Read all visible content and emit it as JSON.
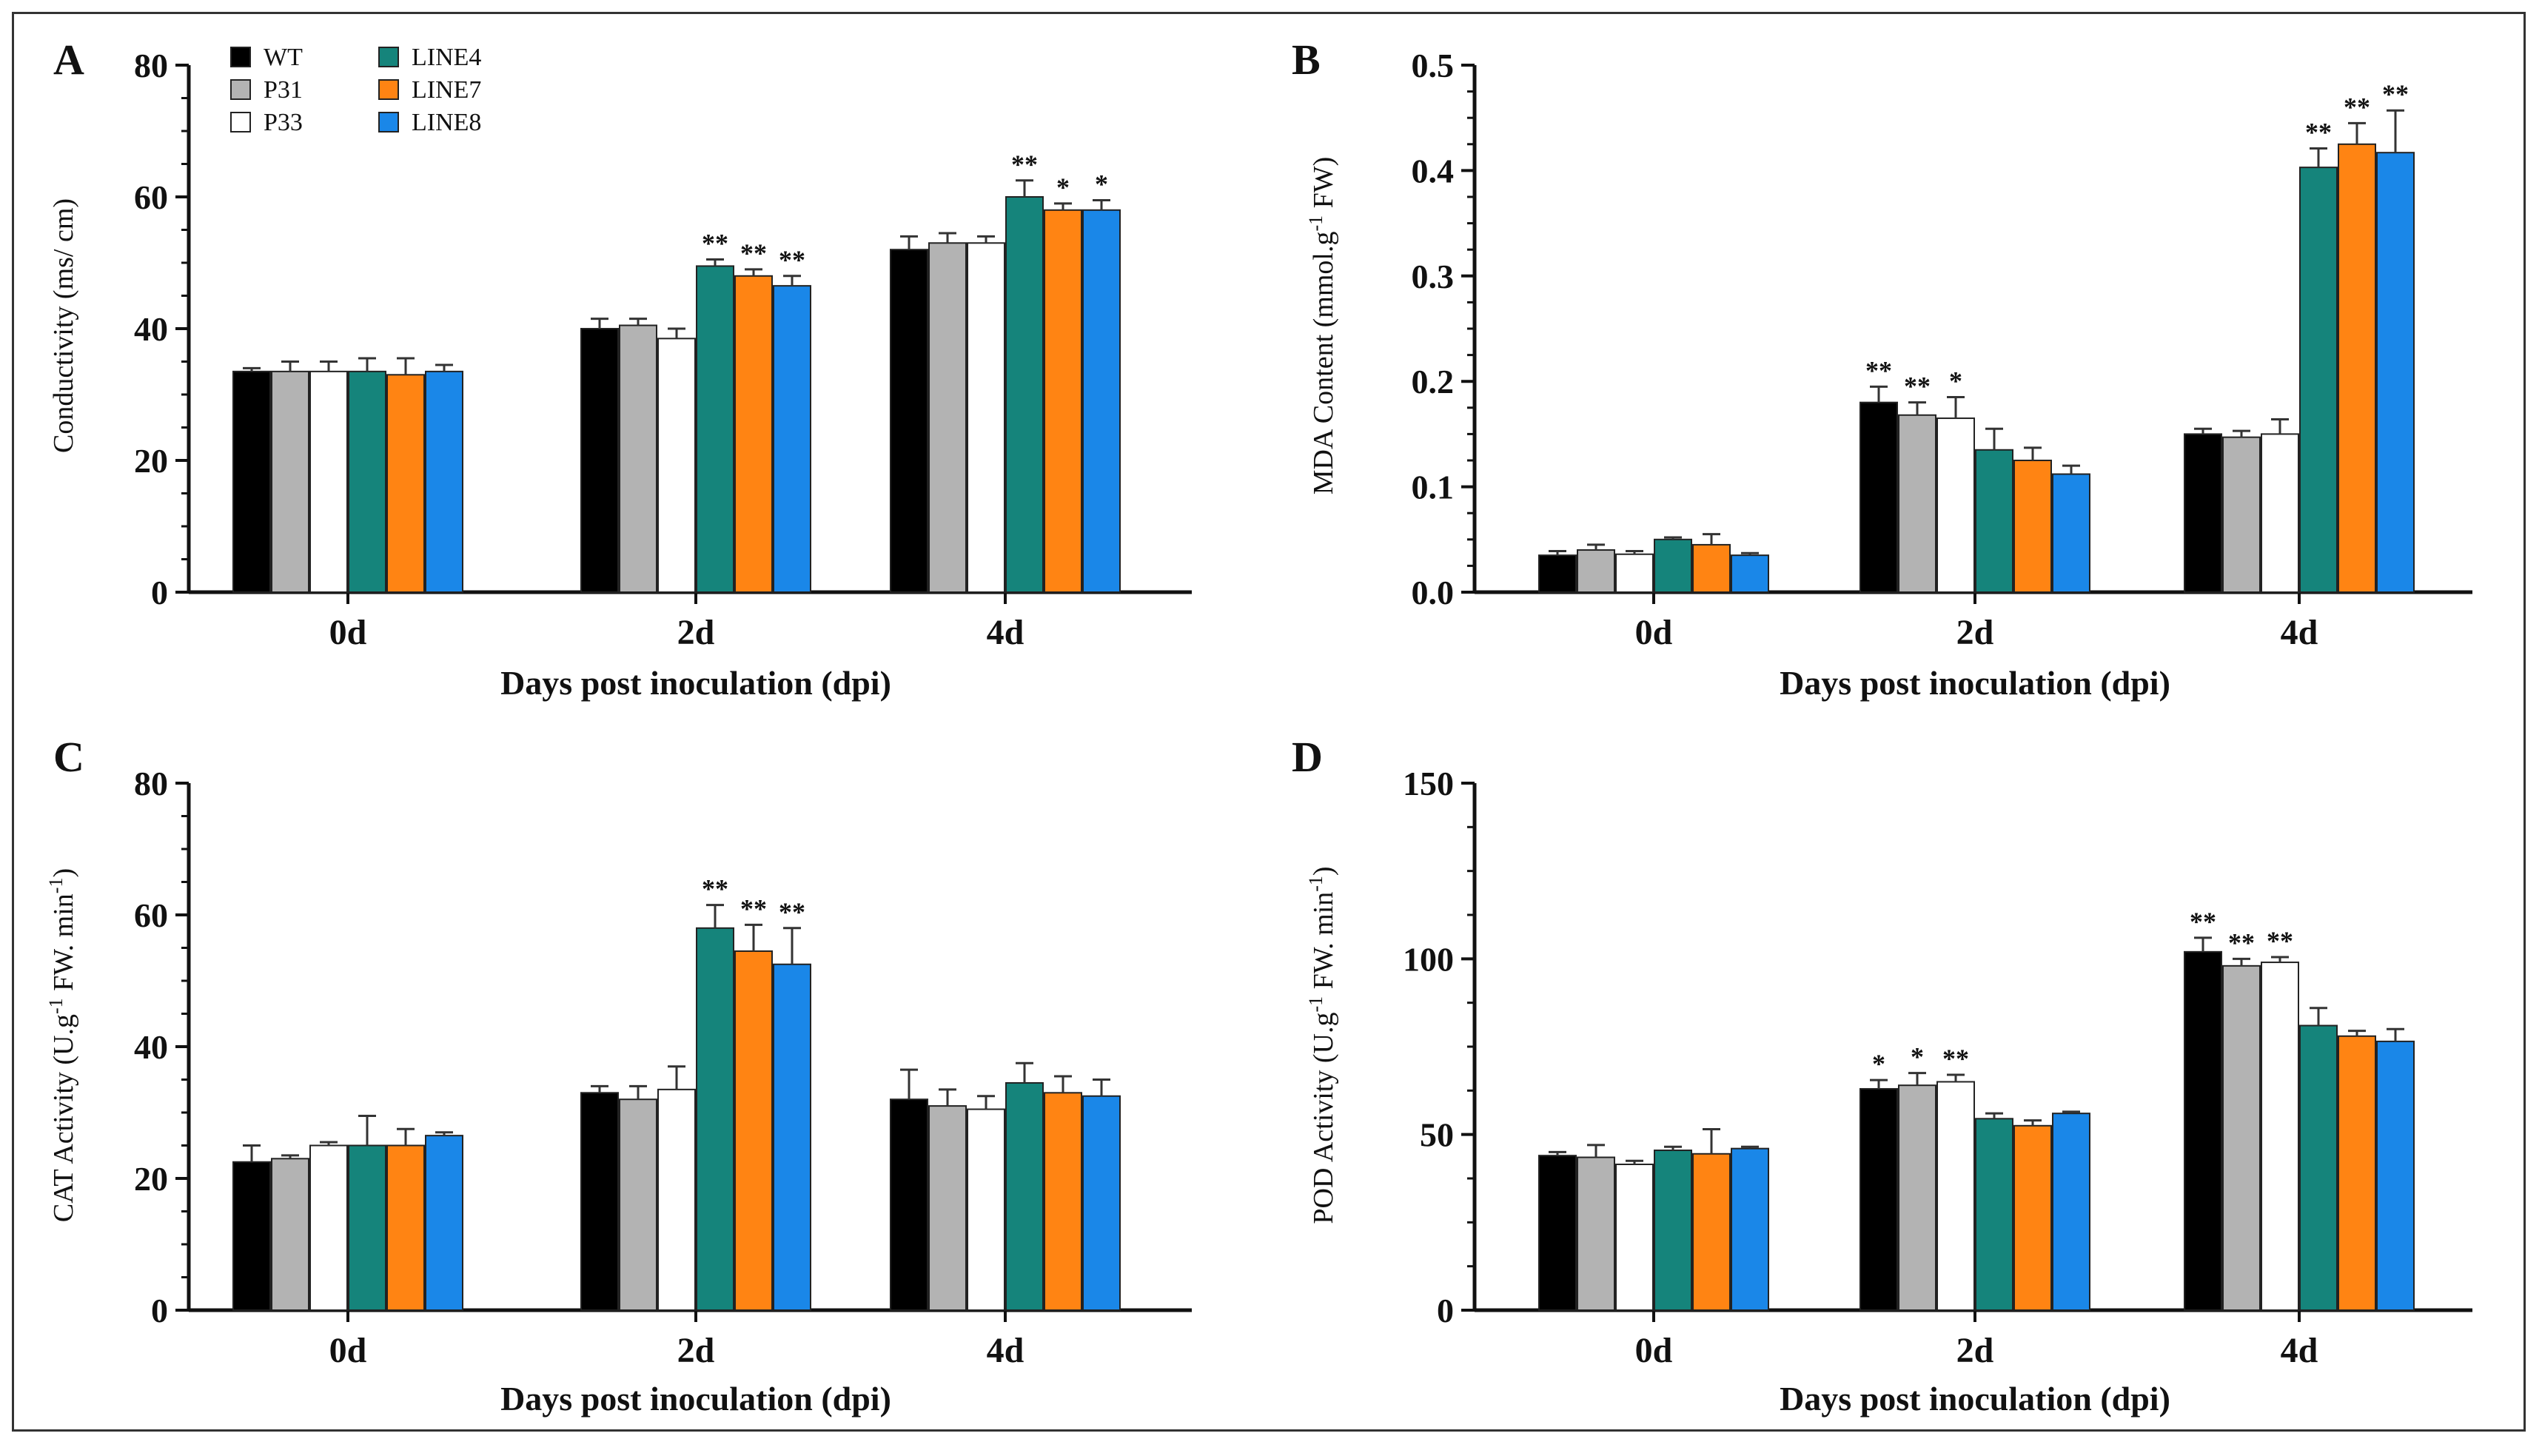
{
  "colors": {
    "WT": "#000000",
    "P31": "#b3b3b3",
    "P33": "#ffffff",
    "LINE4": "#15847b",
    "LINE7": "#ff8413",
    "LINE8": "#1a87e8"
  },
  "legend": {
    "entries": [
      "WT",
      "P31",
      "P33",
      "LINE4",
      "LINE7",
      "LINE8"
    ]
  },
  "chart_data": [
    {
      "panel": "A",
      "type": "bar",
      "title": "",
      "xlabel": "Days post inoculation (dpi)",
      "ylabel": "Conductivity (ms/ cm)",
      "ylim": [
        0,
        80
      ],
      "yticks": [
        "0",
        "20",
        "40",
        "60",
        "80"
      ],
      "categories": [
        "0d",
        "2d",
        "4d"
      ],
      "series": [
        {
          "name": "WT",
          "values": [
            33.5,
            40,
            52
          ],
          "errors": [
            0.5,
            1.5,
            2
          ],
          "sig": [
            "",
            "",
            ""
          ]
        },
        {
          "name": "P31",
          "values": [
            33.5,
            40.5,
            53
          ],
          "errors": [
            1.5,
            1,
            1.5
          ],
          "sig": [
            "",
            "",
            ""
          ]
        },
        {
          "name": "P33",
          "values": [
            33.5,
            38.5,
            53
          ],
          "errors": [
            1.5,
            1.5,
            1
          ],
          "sig": [
            "",
            "",
            ""
          ]
        },
        {
          "name": "LINE4",
          "values": [
            33.5,
            49.5,
            60
          ],
          "errors": [
            2,
            1,
            2.5
          ],
          "sig": [
            "",
            "**",
            "**"
          ]
        },
        {
          "name": "LINE7",
          "values": [
            33,
            48,
            58
          ],
          "errors": [
            2.5,
            1,
            1
          ],
          "sig": [
            "",
            "**",
            "*"
          ]
        },
        {
          "name": "LINE8",
          "values": [
            33.5,
            46.5,
            58
          ],
          "errors": [
            1,
            1.5,
            1.5
          ],
          "sig": [
            "",
            "**",
            "*"
          ]
        }
      ]
    },
    {
      "panel": "B",
      "type": "bar",
      "title": "",
      "xlabel": "Days post inoculation (dpi)",
      "ylabel": "MDA Content (mmol.g-1 FW)",
      "ylabel_main": "MDA Content (mmol.g",
      "ylabel_sup": "-1",
      "ylabel_tail": " FW)",
      "ylim": [
        0,
        0.5
      ],
      "yticks": [
        "0.0",
        "0.1",
        "0.2",
        "0.3",
        "0.4",
        "0.5"
      ],
      "categories": [
        "0d",
        "2d",
        "4d"
      ],
      "series": [
        {
          "name": "WT",
          "values": [
            0.035,
            0.18,
            0.15
          ],
          "errors": [
            0.004,
            0.015,
            0.005
          ],
          "sig": [
            "",
            "**",
            ""
          ]
        },
        {
          "name": "P31",
          "values": [
            0.04,
            0.168,
            0.147
          ],
          "errors": [
            0.005,
            0.012,
            0.006
          ],
          "sig": [
            "",
            "**",
            ""
          ]
        },
        {
          "name": "P33",
          "values": [
            0.036,
            0.165,
            0.15
          ],
          "errors": [
            0.003,
            0.02,
            0.014
          ],
          "sig": [
            "",
            "*",
            ""
          ]
        },
        {
          "name": "LINE4",
          "values": [
            0.05,
            0.135,
            0.403
          ],
          "errors": [
            0.002,
            0.02,
            0.018
          ],
          "sig": [
            "",
            "",
            "**"
          ]
        },
        {
          "name": "LINE7",
          "values": [
            0.045,
            0.125,
            0.425
          ],
          "errors": [
            0.01,
            0.012,
            0.02
          ],
          "sig": [
            "",
            "",
            "**"
          ]
        },
        {
          "name": "LINE8",
          "values": [
            0.035,
            0.112,
            0.417
          ],
          "errors": [
            0.002,
            0.008,
            0.04
          ],
          "sig": [
            "",
            "",
            "**"
          ]
        }
      ]
    },
    {
      "panel": "C",
      "type": "bar",
      "title": "",
      "xlabel": "Days post inoculation (dpi)",
      "ylabel": "CAT Activity (U.g-1 FW. min-1)",
      "ylabel_main": "CAT Activity (U.g",
      "ylabel_sup": "-1",
      "ylabel_mid": " FW. min",
      "ylabel_sup2": "-1",
      "ylabel_tail": ")",
      "ylim": [
        0,
        80
      ],
      "yticks": [
        "0",
        "20",
        "40",
        "60",
        "80"
      ],
      "categories": [
        "0d",
        "2d",
        "4d"
      ],
      "series": [
        {
          "name": "WT",
          "values": [
            22.5,
            33,
            32
          ],
          "errors": [
            2.5,
            1,
            4.5
          ],
          "sig": [
            "",
            "",
            ""
          ]
        },
        {
          "name": "P31",
          "values": [
            23,
            32,
            31
          ],
          "errors": [
            0.5,
            2,
            2.5
          ],
          "sig": [
            "",
            "",
            ""
          ]
        },
        {
          "name": "P33",
          "values": [
            25,
            33.5,
            30.5
          ],
          "errors": [
            0.5,
            3.5,
            2
          ],
          "sig": [
            "",
            "",
            ""
          ]
        },
        {
          "name": "LINE4",
          "values": [
            25,
            58,
            34.5
          ],
          "errors": [
            4.5,
            3.5,
            3
          ],
          "sig": [
            "",
            "**",
            ""
          ]
        },
        {
          "name": "LINE7",
          "values": [
            25,
            54.5,
            33
          ],
          "errors": [
            2.5,
            4,
            2.5
          ],
          "sig": [
            "",
            "**",
            ""
          ]
        },
        {
          "name": "LINE8",
          "values": [
            26.5,
            52.5,
            32.5
          ],
          "errors": [
            0.5,
            5.5,
            2.5
          ],
          "sig": [
            "",
            "**",
            ""
          ]
        }
      ]
    },
    {
      "panel": "D",
      "type": "bar",
      "title": "",
      "xlabel": "Days post inoculation (dpi)",
      "ylabel": "POD Activity (U.g-1 FW. min-1)",
      "ylabel_main": "POD Activity (U.g",
      "ylabel_sup": "-1",
      "ylabel_mid": " FW. min",
      "ylabel_sup2": "-1",
      "ylabel_tail": ")",
      "ylim": [
        0,
        150
      ],
      "yticks": [
        "0",
        "50",
        "100",
        "150"
      ],
      "categories": [
        "0d",
        "2d",
        "4d"
      ],
      "series": [
        {
          "name": "WT",
          "values": [
            44,
            63,
            102
          ],
          "errors": [
            1,
            2.5,
            4
          ],
          "sig": [
            "",
            "*",
            "**"
          ]
        },
        {
          "name": "P31",
          "values": [
            43.5,
            64,
            98
          ],
          "errors": [
            3.5,
            3.5,
            2
          ],
          "sig": [
            "",
            "*",
            "**"
          ]
        },
        {
          "name": "P33",
          "values": [
            41.5,
            65,
            99
          ],
          "errors": [
            1,
            2,
            1.5
          ],
          "sig": [
            "",
            "**",
            "**"
          ]
        },
        {
          "name": "LINE4",
          "values": [
            45.5,
            54.5,
            81
          ],
          "errors": [
            1,
            1.5,
            5
          ],
          "sig": [
            "",
            "",
            ""
          ]
        },
        {
          "name": "LINE7",
          "values": [
            44.5,
            52.5,
            78
          ],
          "errors": [
            7,
            1.5,
            1.5
          ],
          "sig": [
            "",
            "",
            ""
          ]
        },
        {
          "name": "LINE8",
          "values": [
            46,
            56,
            76.5
          ],
          "errors": [
            0.5,
            0.5,
            3.5
          ],
          "sig": [
            "",
            "",
            ""
          ]
        }
      ]
    }
  ]
}
